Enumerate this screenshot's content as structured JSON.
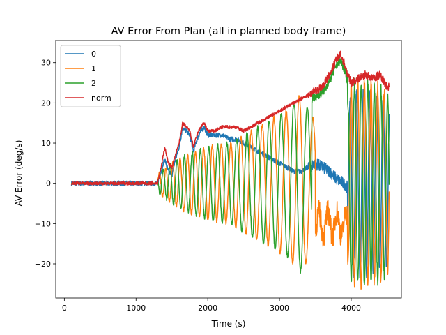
{
  "chart_data": {
    "type": "line",
    "title": "AV Error From Plan (all in planned body frame)",
    "xlabel": "Time (s)",
    "ylabel": "AV Error (deg/s)",
    "xlim": [
      -120,
      4700
    ],
    "ylim": [
      -28.5,
      35.5
    ],
    "xticks": [
      0,
      1000,
      2000,
      3000,
      4000
    ],
    "yticks": [
      -20,
      -10,
      0,
      10,
      20,
      30
    ],
    "grid": false,
    "legend_position": "top-left",
    "series": [
      {
        "name": "0",
        "color": "#1f77b4",
        "kind": "error0"
      },
      {
        "name": "1",
        "color": "#ff7f0e",
        "kind": "error1"
      },
      {
        "name": "2",
        "color": "#2ca02c",
        "kind": "error2"
      },
      {
        "name": "norm",
        "color": "#d62728",
        "kind": "norm"
      }
    ],
    "norm_envelope": {
      "x": [
        100,
        1300,
        1350,
        1400,
        1450,
        1500,
        1550,
        1600,
        1650,
        1700,
        1750,
        1800,
        1850,
        1900,
        1950,
        2000,
        2100,
        2200,
        2300,
        2400,
        2500,
        2600,
        2700,
        2800,
        2900,
        3000,
        3100,
        3200,
        3300,
        3400,
        3500,
        3600,
        3700,
        3800,
        3850,
        3900,
        3950,
        4000,
        4100,
        4200,
        4300,
        4400,
        4500
      ],
      "y": [
        0,
        0,
        4,
        9,
        5,
        4,
        7,
        10,
        15,
        14,
        13,
        9,
        12,
        14,
        15,
        13,
        13,
        14,
        14,
        14,
        13,
        14,
        15,
        16,
        17,
        18,
        19,
        20,
        21,
        22,
        23,
        24,
        27,
        31,
        32,
        30,
        27,
        25,
        26,
        27,
        26,
        27,
        24
      ]
    },
    "component0_envelope": {
      "x": [
        100,
        1300,
        1350,
        1400,
        1450,
        1500,
        1550,
        1600,
        1650,
        1700,
        1750,
        1800,
        1850,
        1900,
        1950,
        2000,
        2100,
        2200,
        2300,
        2400,
        2500,
        2600,
        2700,
        2800,
        2900,
        3000,
        3100,
        3200,
        3300,
        3400,
        3500,
        3600,
        3700,
        3800,
        3900,
        4000,
        4100,
        4200,
        4300,
        4400,
        4500
      ],
      "y": [
        0,
        0,
        3,
        6,
        3,
        2,
        6,
        9,
        14,
        13,
        12,
        8,
        11,
        13,
        14,
        12,
        12,
        12,
        11,
        11,
        10,
        9,
        8,
        7,
        6,
        5,
        4,
        3,
        3,
        4,
        5,
        4,
        3,
        1,
        0,
        -2,
        -4,
        -6,
        -8,
        -10,
        -12
      ]
    },
    "oscillation_amplitude": {
      "x": [
        1300,
        1500,
        1700,
        2000,
        2300,
        2600,
        2900,
        3100,
        3300,
        3500,
        3700,
        3850,
        4000,
        4200,
        4400,
        4500
      ],
      "y": [
        2,
        5,
        7,
        9,
        10,
        13,
        16,
        18,
        22,
        15,
        12,
        8,
        25,
        25,
        24,
        22
      ]
    }
  }
}
